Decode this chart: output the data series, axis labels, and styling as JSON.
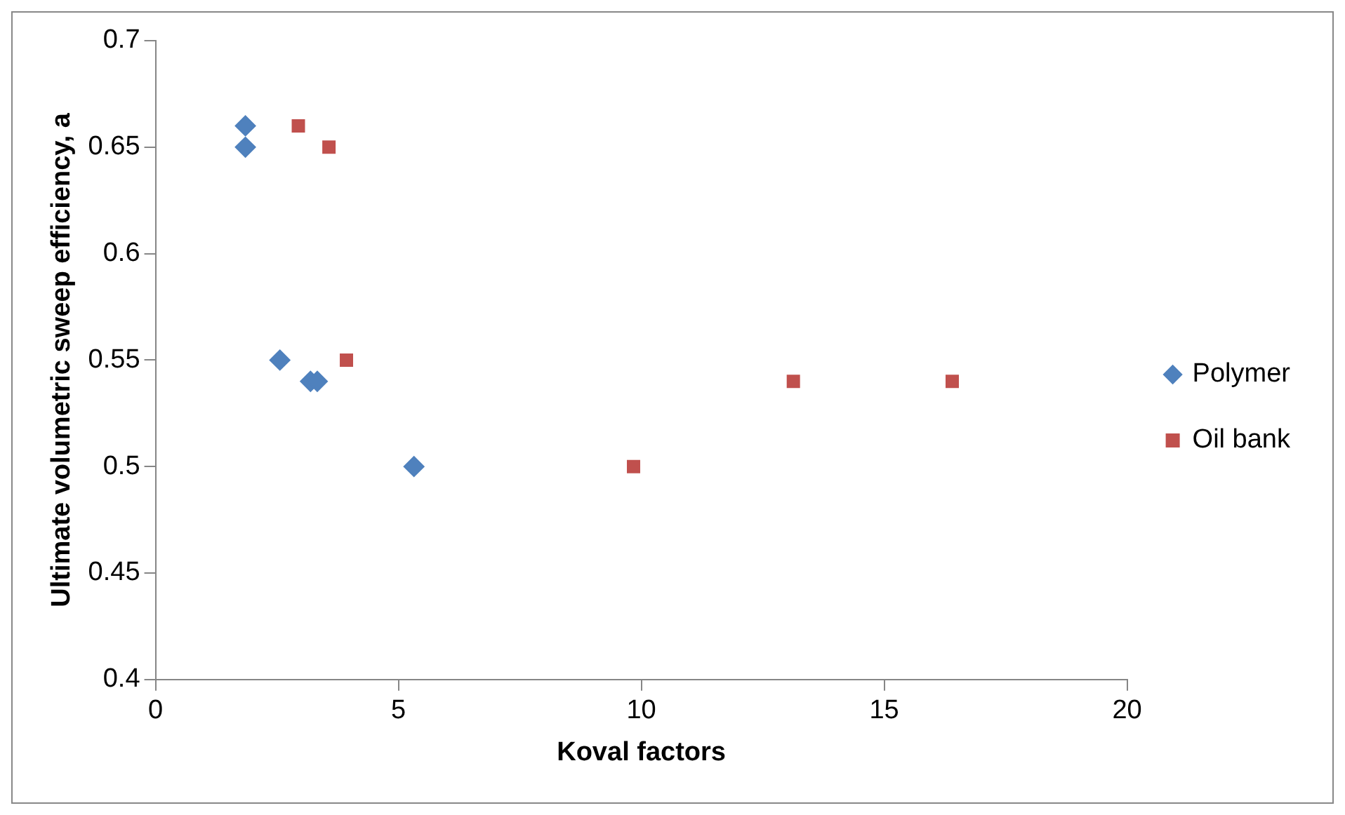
{
  "chart_data": {
    "type": "scatter",
    "xlabel": "Koval factors",
    "ylabel": "Ultimate volumetric sweep efficiency, a",
    "series": [
      {
        "name": "Polymer",
        "color": "#4f81bd",
        "marker": "diamond",
        "x": [
          1.85,
          1.85,
          2.56,
          3.19,
          3.33,
          5.32
        ],
        "values": [
          0.66,
          0.65,
          0.55,
          0.54,
          0.54,
          0.5
        ]
      },
      {
        "name": "Oil bank",
        "color": "#c0504d",
        "marker": "square",
        "x": [
          2.94,
          3.57,
          3.93,
          9.84,
          13.13,
          16.4
        ],
        "values": [
          0.66,
          0.65,
          0.55,
          0.5,
          0.54,
          0.54
        ]
      }
    ],
    "xlim": [
      0,
      20
    ],
    "xticks": [
      0,
      5,
      10,
      15,
      20
    ],
    "ylim": [
      0.4,
      0.7
    ],
    "yticks": [
      0.4,
      0.45,
      0.5,
      0.55,
      0.6,
      0.65,
      0.7
    ],
    "legend": "right",
    "grid": false
  }
}
